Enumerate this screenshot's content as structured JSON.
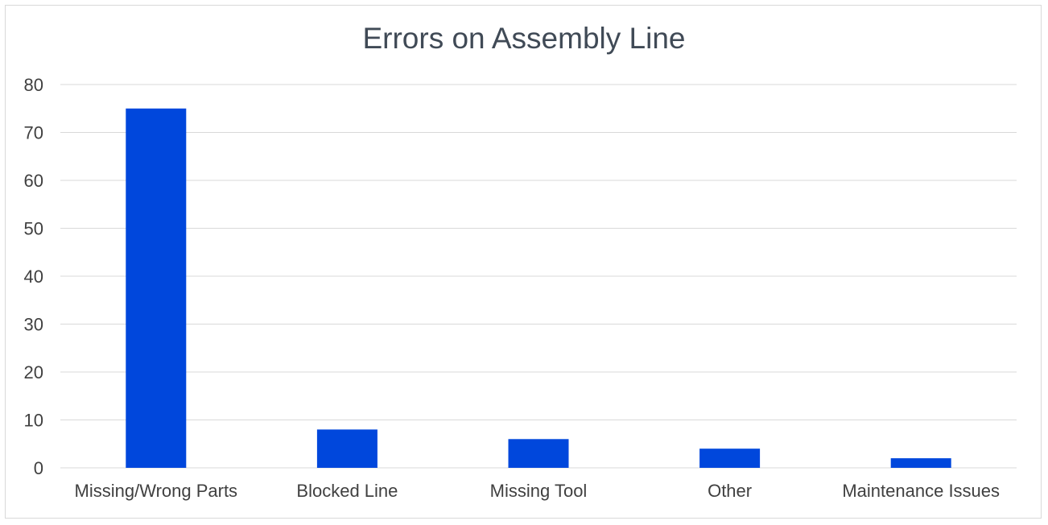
{
  "chart_data": {
    "type": "bar",
    "title": "Errors on Assembly Line",
    "xlabel": "",
    "ylabel": "",
    "categories": [
      "Missing/Wrong Parts",
      "Blocked Line",
      "Missing Tool",
      "Other",
      "Maintenance Issues"
    ],
    "values": [
      75,
      8,
      6,
      4,
      2
    ],
    "ylim": [
      0,
      80
    ],
    "yticks": [
      "0",
      "10",
      "20",
      "30",
      "40",
      "50",
      "60",
      "70",
      "80"
    ],
    "grid": true,
    "legend": "none",
    "bar_color": "#0047dc",
    "grid_color": "#d9d9d9"
  }
}
